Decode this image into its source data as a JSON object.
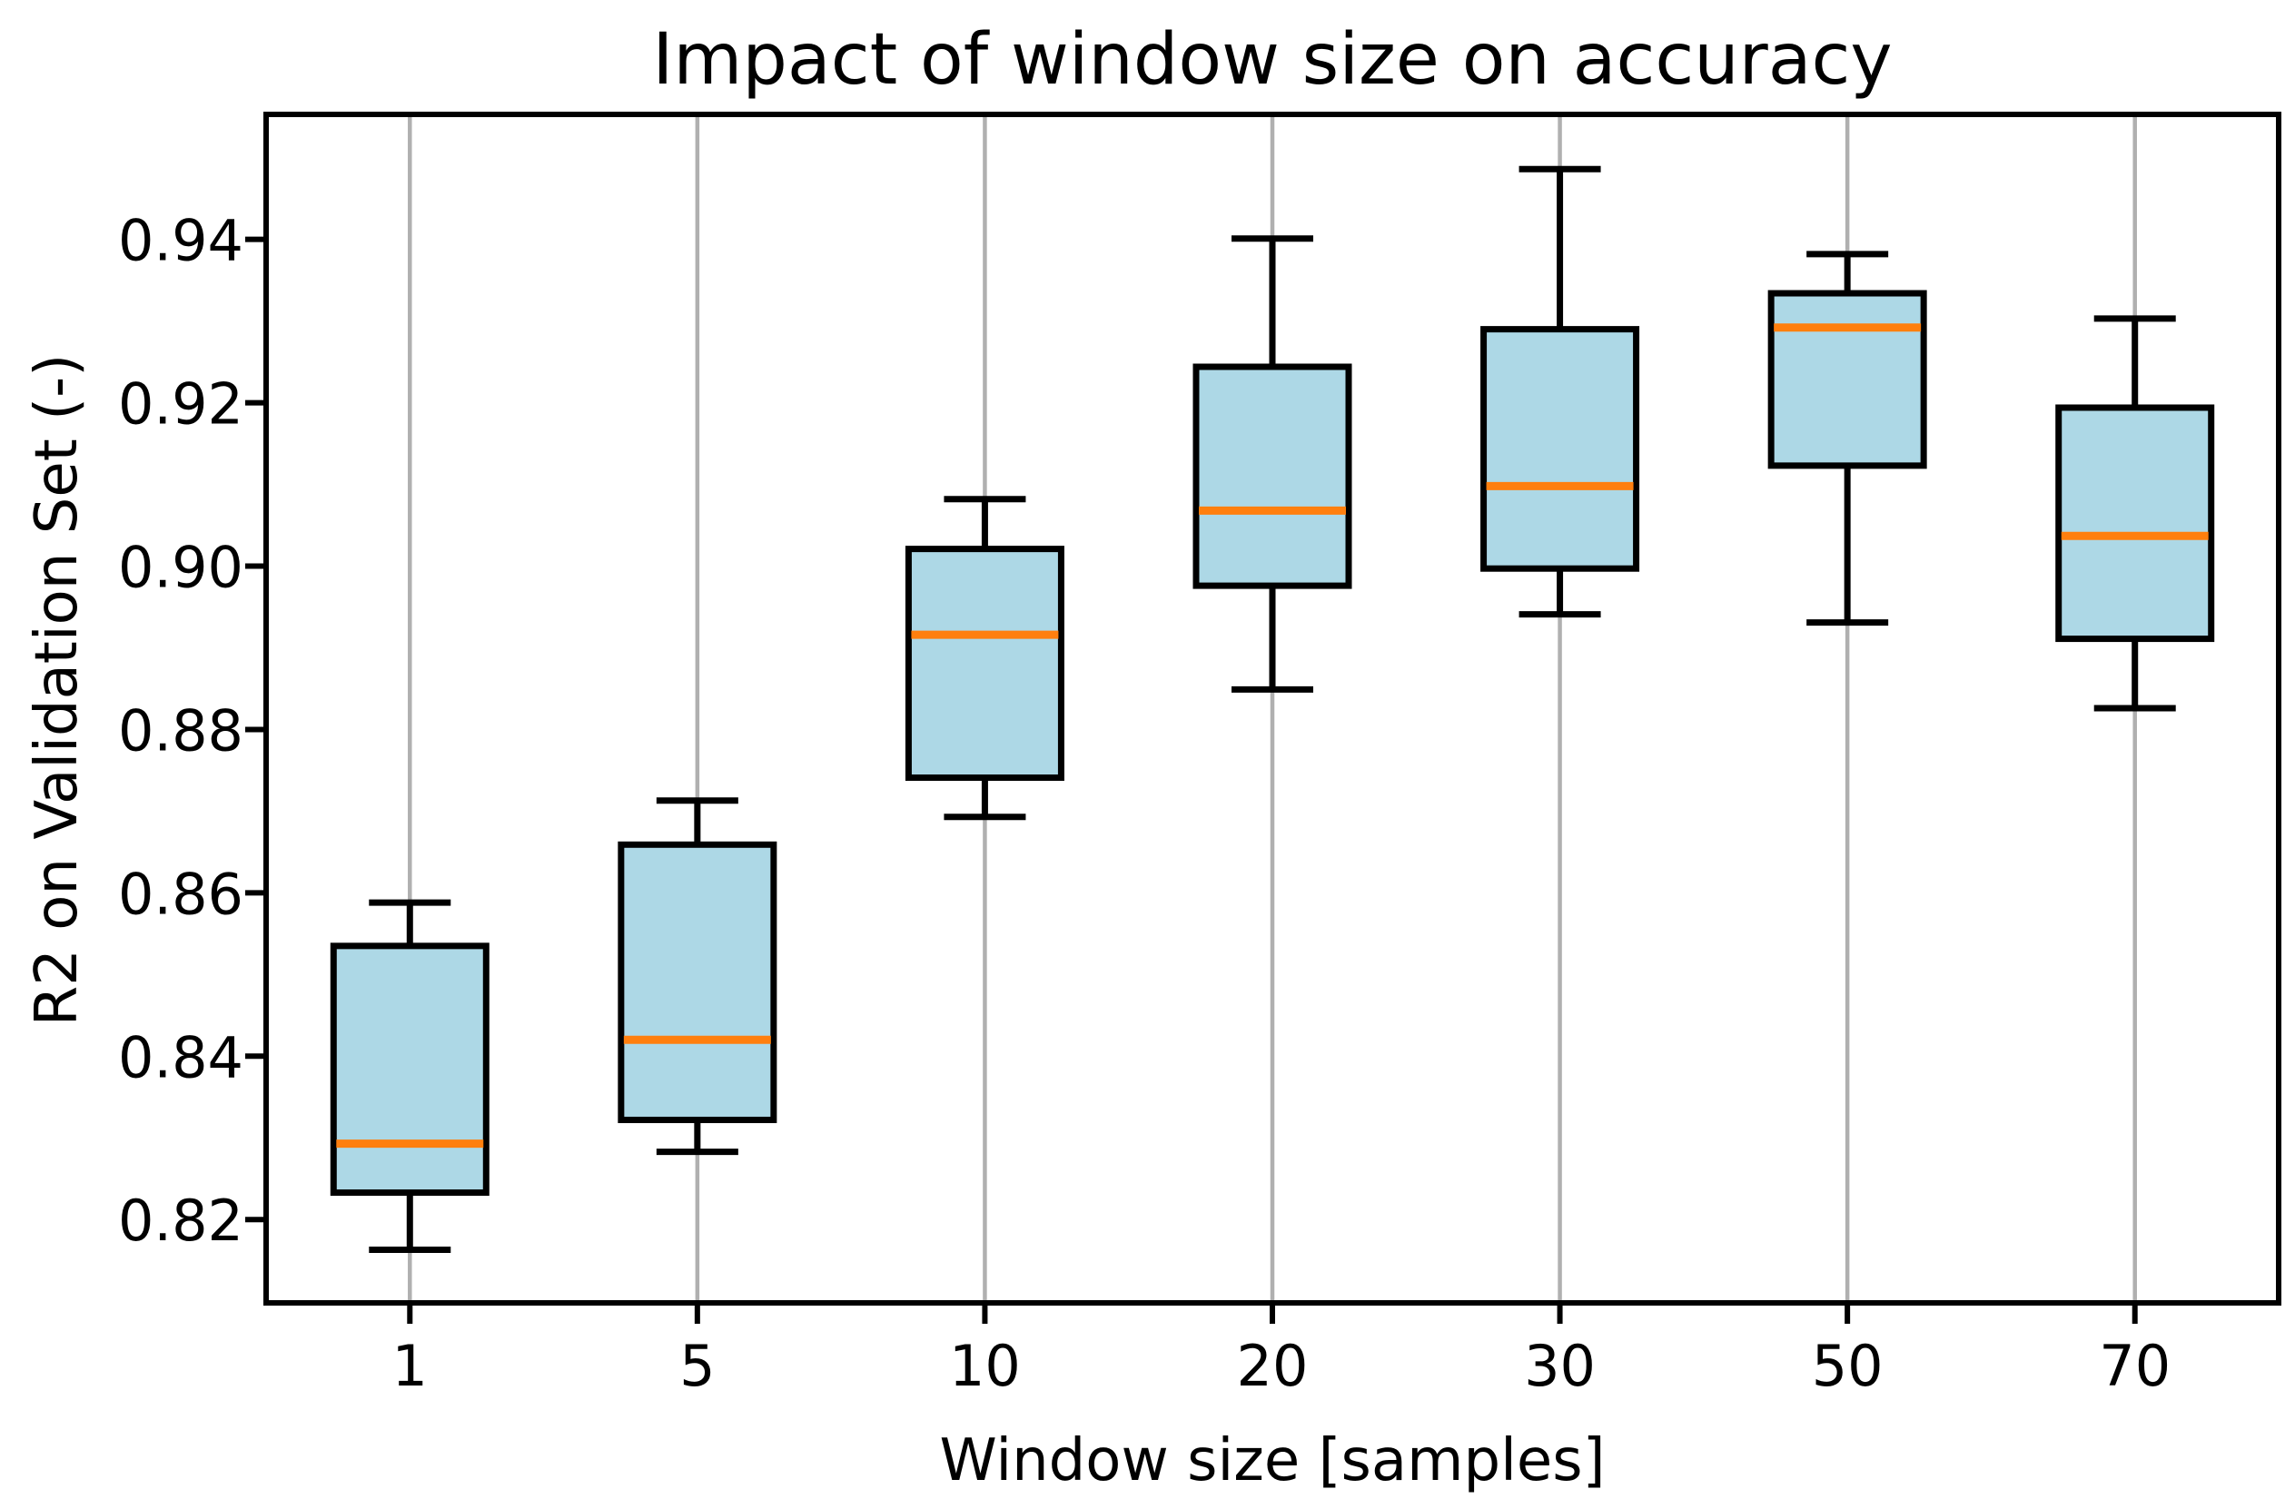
{
  "chart_data": {
    "type": "boxplot",
    "title": "Impact of window size on accuracy",
    "xlabel": "Window size [samples]",
    "ylabel": "R2 on Validation Set (-)",
    "categories": [
      "1",
      "5",
      "10",
      "20",
      "30",
      "50",
      "70"
    ],
    "series": [
      {
        "category": "1",
        "whislo": 0.8163,
        "q1": 0.8233,
        "median": 0.8293,
        "q3": 0.8535,
        "whishi": 0.8588
      },
      {
        "category": "5",
        "whislo": 0.8283,
        "q1": 0.8322,
        "median": 0.842,
        "q3": 0.8659,
        "whishi": 0.8713
      },
      {
        "category": "10",
        "whislo": 0.8693,
        "q1": 0.8741,
        "median": 0.8916,
        "q3": 0.9021,
        "whishi": 0.9082
      },
      {
        "category": "20",
        "whislo": 0.8849,
        "q1": 0.8976,
        "median": 0.9068,
        "q3": 0.9244,
        "whishi": 0.9401
      },
      {
        "category": "30",
        "whislo": 0.8941,
        "q1": 0.8997,
        "median": 0.9098,
        "q3": 0.929,
        "whishi": 0.9486
      },
      {
        "category": "50",
        "whislo": 0.8931,
        "q1": 0.9123,
        "median": 0.9292,
        "q3": 0.9334,
        "whishi": 0.9382
      },
      {
        "category": "70",
        "whislo": 0.8826,
        "q1": 0.8911,
        "median": 0.9037,
        "q3": 0.9194,
        "whishi": 0.9303
      }
    ],
    "y_ticks": [
      {
        "label": "0.94",
        "value": 0.94
      },
      {
        "label": "0.92",
        "value": 0.92
      },
      {
        "label": "0.90",
        "value": 0.9
      },
      {
        "label": "0.88",
        "value": 0.88
      },
      {
        "label": "0.86",
        "value": 0.86
      },
      {
        "label": "0.84",
        "value": 0.84
      },
      {
        "label": "0.82",
        "value": 0.82
      }
    ],
    "ylim": [
      0.8098,
      0.9553
    ],
    "grid": {
      "axis": "x",
      "color": "#B0B0B0"
    },
    "legend": "none",
    "colors": {
      "box_fill": "#ADD8E6",
      "box_edge": "#000000",
      "whisker": "#000000",
      "median": "#FF7F0E",
      "grid": "#B0B0B0",
      "spine": "#000000",
      "text": "#000000",
      "background": "#FFFFFF"
    }
  }
}
